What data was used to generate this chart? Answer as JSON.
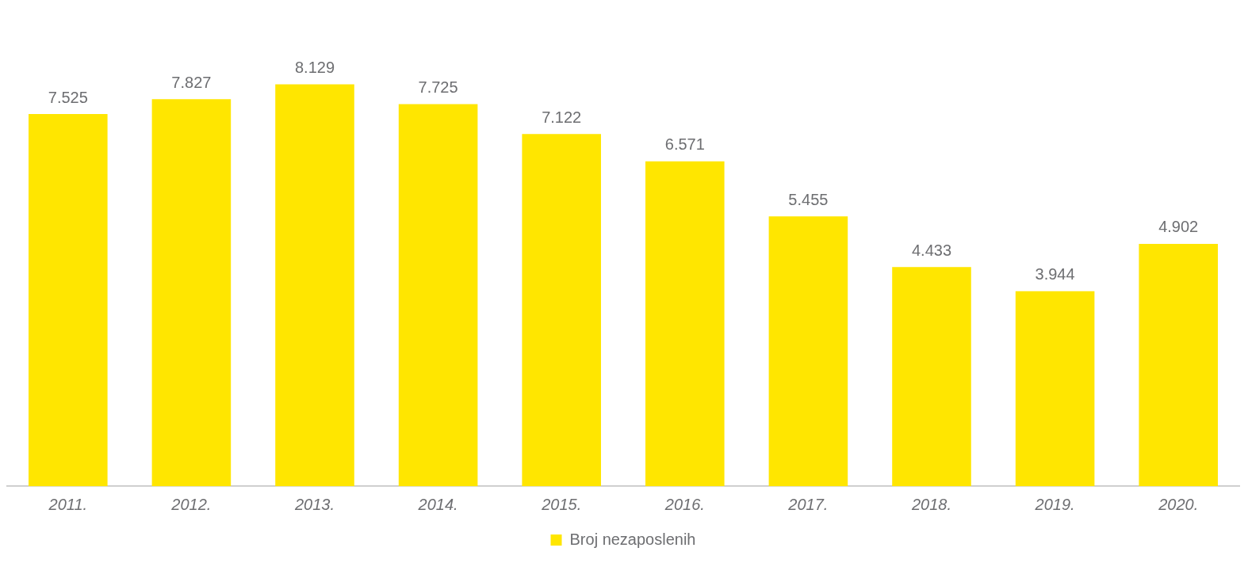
{
  "chart_data": {
    "type": "bar",
    "categories": [
      "2011.",
      "2012.",
      "2013.",
      "2014.",
      "2015.",
      "2016.",
      "2017.",
      "2018.",
      "2019.",
      "2020."
    ],
    "series": [
      {
        "name": "Broj nezaposlenih",
        "color": "#ffe600",
        "values": [
          7525,
          7827,
          8129,
          7725,
          7122,
          6571,
          5455,
          4433,
          3944,
          4902
        ],
        "value_labels": [
          "7.525",
          "7.827",
          "8.129",
          "7.725",
          "7.122",
          "6.571",
          "5.455",
          "4.433",
          "3.944",
          "4.902"
        ]
      }
    ],
    "legend": "bottom",
    "grid": false
  }
}
